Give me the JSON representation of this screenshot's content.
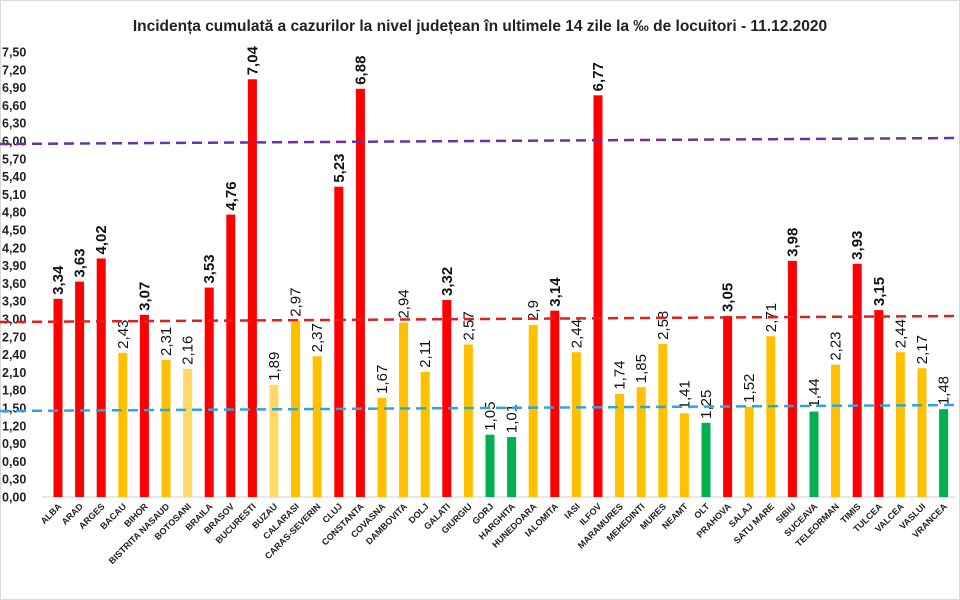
{
  "chart_data": {
    "type": "bar",
    "title": "Incidența cumulată a cazurilor la nivel județean în ultimele 14 zile la ‰ de locuitori - 11.12.2020",
    "xlabel": "",
    "ylabel": "",
    "ylim": [
      0,
      7.5
    ],
    "ytick_step": 0.3,
    "ytick_labels": [
      "0,00",
      "0,30",
      "0,60",
      "0,90",
      "1,20",
      "1,50",
      "1,80",
      "2,10",
      "2,40",
      "2,70",
      "3,00",
      "3,30",
      "3,60",
      "3,90",
      "4,20",
      "4,50",
      "4,80",
      "5,10",
      "5,40",
      "5,70",
      "6,00",
      "6,30",
      "6,60",
      "6,90",
      "7,20",
      "7,50"
    ],
    "grid": false,
    "categories": [
      "ALBA",
      "ARAD",
      "ARGES",
      "BACAU",
      "BIHOR",
      "BISTRITA NASAUD",
      "BOTOSANI",
      "BRAILA",
      "BRASOV",
      "BUCURESTI",
      "BUZAU",
      "CALARASI",
      "CARAS-SEVERIN",
      "CLUJ",
      "CONSTANTA",
      "COVASNA",
      "DAMBOVITA",
      "DOLJ",
      "GALATI",
      "GIURGIU",
      "GORJ",
      "HARGHITA",
      "HUNEDOARA",
      "IALOMITA",
      "IASI",
      "ILFOV",
      "MARAMURES",
      "MEHEDINTI",
      "MURES",
      "NEAMT",
      "OLT",
      "PRAHOVA",
      "SALAJ",
      "SATU MARE",
      "SIBIU",
      "SUCEAVA",
      "TELEORMAN",
      "TIMIS",
      "TULCEA",
      "VALCEA",
      "VASLUI",
      "VRANCEA"
    ],
    "values": [
      3.34,
      3.63,
      4.02,
      2.43,
      3.07,
      2.31,
      2.16,
      3.53,
      4.76,
      7.04,
      1.89,
      2.97,
      2.37,
      5.23,
      6.88,
      1.67,
      2.94,
      2.11,
      3.32,
      2.57,
      1.05,
      1.01,
      2.9,
      3.14,
      2.44,
      6.77,
      1.74,
      1.85,
      2.58,
      1.41,
      1.25,
      3.05,
      1.52,
      2.71,
      3.98,
      1.44,
      2.23,
      3.93,
      3.15,
      2.44,
      2.17,
      1.48
    ],
    "value_labels": [
      "3,34",
      "3,63",
      "4,02",
      "2,43",
      "3,07",
      "2,31",
      "2,16",
      "3,53",
      "4,76",
      "7,04",
      "1,89",
      "2,97",
      "2,37",
      "5,23",
      "6,88",
      "1,67",
      "2,94",
      "2,11",
      "3,32",
      "2,57",
      "1,05",
      "1,01",
      "2,9",
      "3,14",
      "2,44",
      "6,77",
      "1,74",
      "1,85",
      "2,58",
      "1,41",
      "1,25",
      "3,05",
      "1,52",
      "2,71",
      "3,98",
      "1,44",
      "2,23",
      "3,93",
      "3,15",
      "2,44",
      "2,17",
      "1,48"
    ],
    "bar_colors": [
      "#ff0000",
      "#ff0000",
      "#ff0000",
      "#ffc000",
      "#ff0000",
      "#ffc000",
      "#ffd966",
      "#ff0000",
      "#ff0000",
      "#ff0000",
      "#ffd966",
      "#ffc000",
      "#ffc000",
      "#ff0000",
      "#ff0000",
      "#ffc000",
      "#ffc000",
      "#ffc000",
      "#ff0000",
      "#ffc000",
      "#00b050",
      "#00b050",
      "#ffc000",
      "#ff0000",
      "#ffc000",
      "#ff0000",
      "#ffc000",
      "#ffc000",
      "#ffc000",
      "#ffc000",
      "#00b050",
      "#ff0000",
      "#ffc000",
      "#ffc000",
      "#ff0000",
      "#00b050",
      "#ffc000",
      "#ff0000",
      "#ff0000",
      "#ffc000",
      "#ffc000",
      "#00b050"
    ],
    "reference_lines": [
      {
        "value": 6.0,
        "color": "#7030a0",
        "style": "dashed"
      },
      {
        "value": 3.0,
        "color": "#e02020",
        "style": "dashed"
      },
      {
        "value": 1.5,
        "color": "#2aa7e0",
        "style": "dashed"
      }
    ]
  }
}
